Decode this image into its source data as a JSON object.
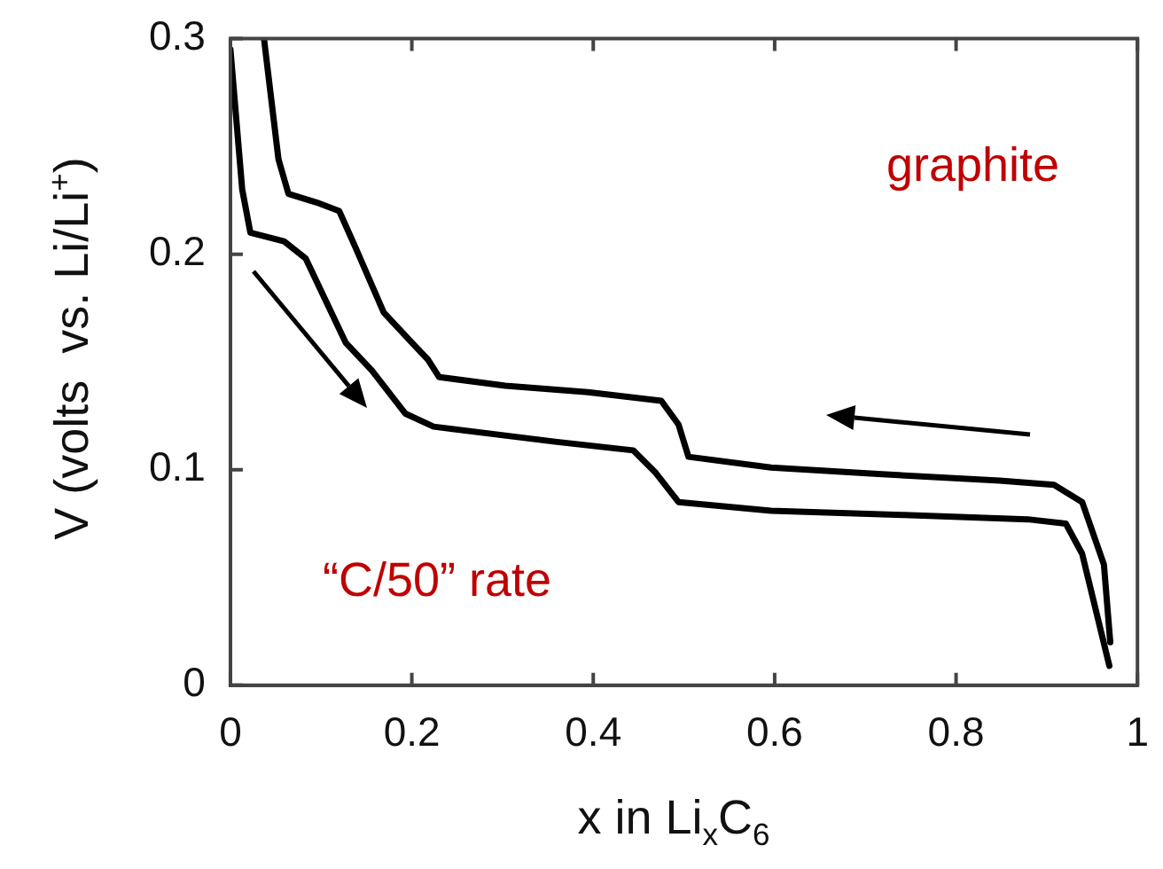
{
  "chart_data": {
    "type": "line",
    "xlabel": "x in Li$_{x}$C$_{6}$",
    "ylabel": "V (volts  vs. Li/Li$^{+}$)",
    "annotations": [
      "graphite",
      "“C/50” rate"
    ],
    "xlim": [
      0,
      1
    ],
    "xticks": [
      0,
      0.2,
      0.4,
      0.6,
      0.8,
      1
    ],
    "ylim": [
      0,
      0.3
    ],
    "yticks": [
      0,
      0.1,
      0.2,
      0.3
    ],
    "line_style": "solid",
    "marker": "none",
    "series": [
      {
        "color": "#000000",
        "x": [
          0.037,
          0.053,
          0.064,
          0.095,
          0.12,
          0.138,
          0.169,
          0.2,
          0.218,
          0.23,
          0.303,
          0.394,
          0.475,
          0.494,
          0.505,
          0.596,
          0.714,
          0.848,
          0.908,
          0.939,
          0.963,
          0.97
        ],
        "values": [
          0.3,
          0.244,
          0.228,
          0.224,
          0.22,
          0.203,
          0.173,
          0.159,
          0.151,
          0.143,
          0.139,
          0.136,
          0.132,
          0.121,
          0.106,
          0.101,
          0.098,
          0.095,
          0.093,
          0.085,
          0.056,
          0.02
        ]
      },
      {
        "color": "#000000",
        "x": [
          0,
          0.013,
          0.022,
          0.059,
          0.083,
          0.127,
          0.156,
          0.193,
          0.224,
          0.358,
          0.444,
          0.468,
          0.494,
          0.596,
          0.743,
          0.879,
          0.921,
          0.939,
          0.969
        ],
        "values": [
          0.295,
          0.23,
          0.21,
          0.206,
          0.198,
          0.159,
          0.146,
          0.126,
          0.12,
          0.113,
          0.109,
          0.099,
          0.085,
          0.081,
          0.079,
          0.077,
          0.075,
          0.061,
          0.009
        ]
      }
    ]
  }
}
